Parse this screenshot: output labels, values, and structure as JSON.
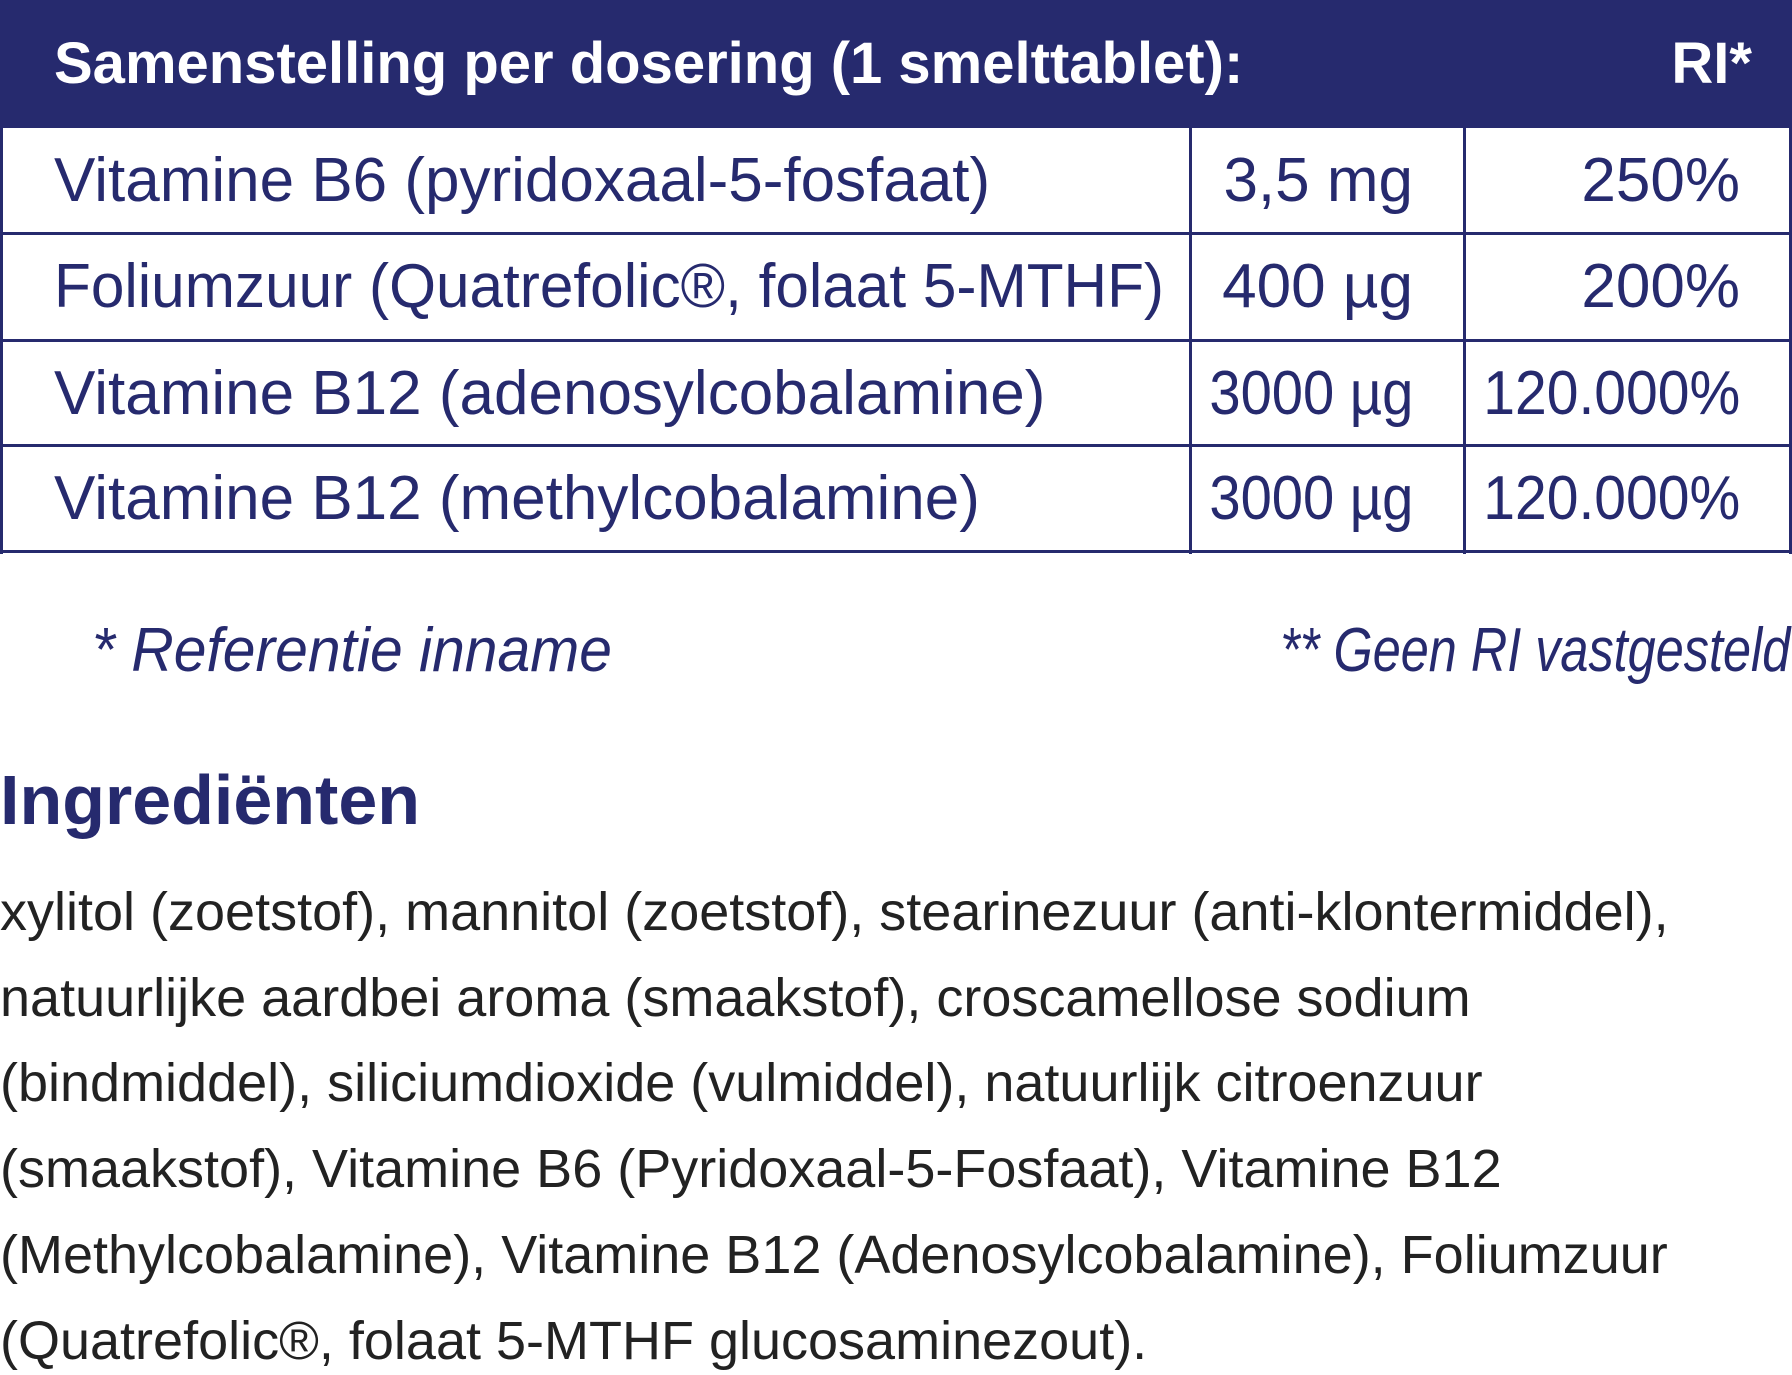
{
  "table": {
    "header": [
      "Samenstelling per dosering (1 smelttablet):",
      "RI*"
    ],
    "rows": [
      [
        "Vitamine B6 (pyridoxaal-5-fosfaat)",
        "3,5 mg",
        "250%"
      ],
      [
        "Foliumzuur (Quatrefolic®, folaat 5-MTHF)",
        "400 µg",
        "200%"
      ],
      [
        "Vitamine B12 (adenosylcobalamine)",
        "3000 µg",
        "120.000%"
      ],
      [
        "Vitamine B12 (methylcobalamine)",
        "3000 µg",
        "120.000%"
      ]
    ]
  },
  "footnotes": [
    "* Referentie inname",
    "** Geen RI vastgesteld"
  ],
  "ingredients": {
    "title": "Ingrediënten",
    "lines": [
      "xylitol (zoetstof), mannitol (zoetstof), stearinezuur (anti-klontermiddel),",
      "natuurlijke aardbei aroma (smaakstof), croscamellose sodium",
      "(bindmiddel), siliciumdioxide (vulmiddel), natuurlijk citroenzuur",
      "(smaakstof), Vitamine B6 (Pyridoxaal-5-Fosfaat), Vitamine B12",
      "(Methylcobalamine), Vitamine B12 (Adenosylcobalamine), Foliumzuur",
      "(Quatrefolic®, folaat 5-MTHF glucosaminezout)."
    ]
  }
}
